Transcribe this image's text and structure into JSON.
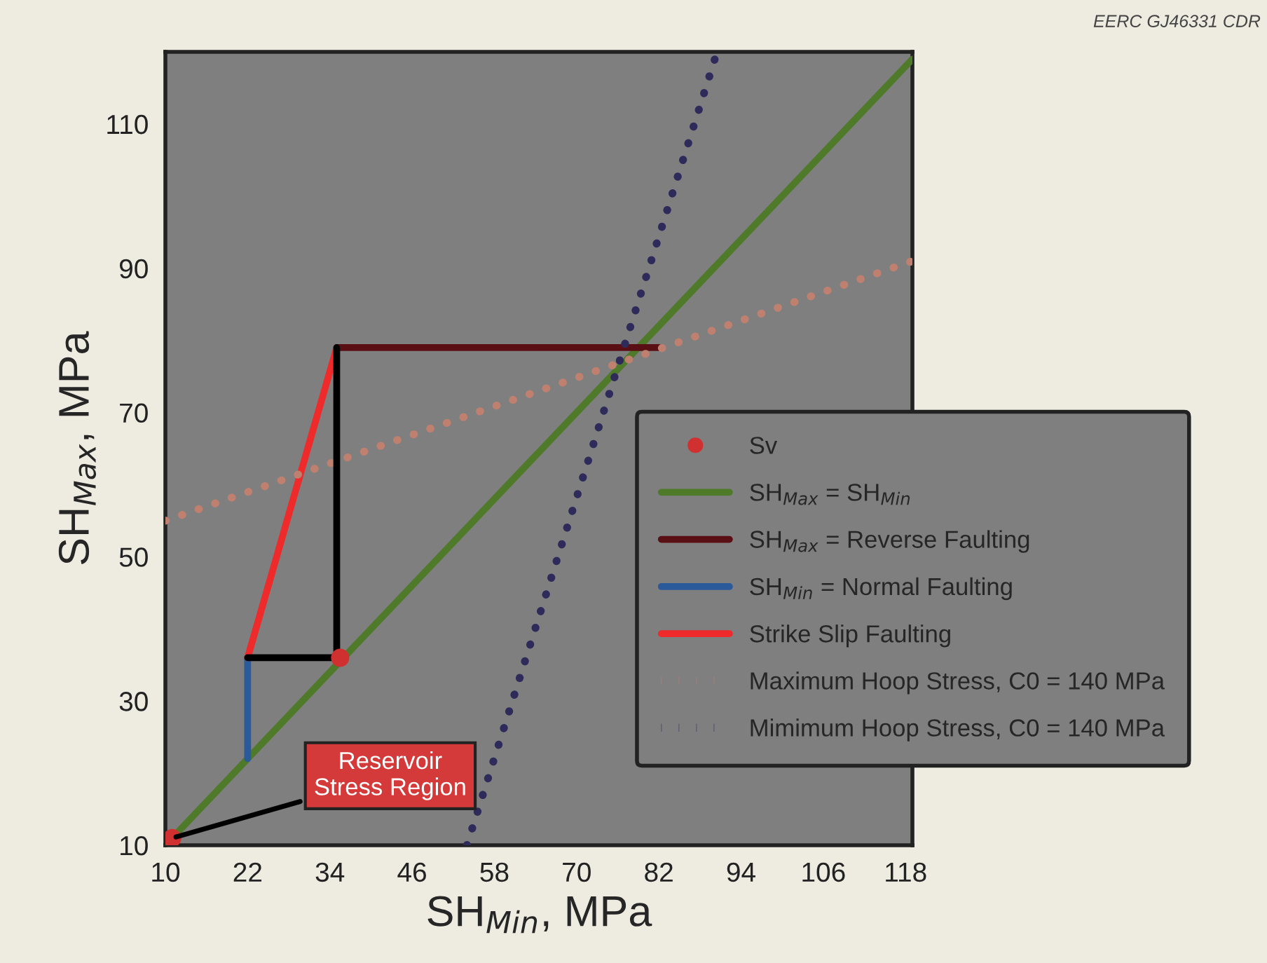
{
  "chart_data": {
    "type": "line",
    "xlabel": "SH$_{Min}$, MPa",
    "ylabel": "SH$_{Max}$, MPa",
    "xlim": [
      10,
      119
    ],
    "ylim": [
      10,
      120
    ],
    "xticks": [
      10,
      22,
      34,
      46,
      58,
      70,
      82,
      94,
      106,
      118
    ],
    "yticks": [
      10,
      30,
      50,
      70,
      90,
      110
    ],
    "grid": false,
    "legend": "bottom right",
    "series": [
      {
        "name": "Sv",
        "type": "scatter",
        "marker": "circle",
        "color": "#d03030",
        "x": [
          11,
          35.5
        ],
        "values": [
          11,
          36
        ]
      },
      {
        "name": "SH$_{Max}$ = SH$_{Min}$",
        "line_style": "solid",
        "color": "#4f7a2a",
        "x": [
          10,
          119
        ],
        "values": [
          10,
          119
        ]
      },
      {
        "name": "SH$_{Max}$ = Reverse Faulting",
        "line_style": "solid",
        "color": "#5a0f14",
        "x": [
          35,
          82
        ],
        "values": [
          79,
          79
        ]
      },
      {
        "name": "SH$_{Min}$ = Normal Faulting",
        "line_style": "solid",
        "color": "#2a5a9a",
        "x": [
          22,
          22
        ],
        "values": [
          22,
          36
        ]
      },
      {
        "name": "Strike Slip Faulting",
        "line_style": "solid",
        "color": "#ee2a2a",
        "x": [
          22,
          35
        ],
        "values": [
          36,
          79
        ]
      },
      {
        "name": "Maximum Hoop Stress, C0 = 140 MPa",
        "line_style": "dotted",
        "color": "#c08070",
        "x": [
          10,
          119
        ],
        "values": [
          55,
          91
        ]
      },
      {
        "name": "Mimimum Hoop Stress, C0 = 140 MPa",
        "line_style": "dotted",
        "color": "#2e2a5a",
        "x": [
          54,
          90.5
        ],
        "values": [
          10,
          120
        ]
      },
      {
        "line_style": "solid",
        "color": "#000000",
        "x": [
          22,
          35,
          35
        ],
        "values": [
          36,
          36,
          79
        ]
      }
    ],
    "annotations": [
      "EERC GJ46331 CDR",
      {
        "text": "Reservoir\nStress Region",
        "x": 11,
        "y": 11
      }
    ]
  }
}
